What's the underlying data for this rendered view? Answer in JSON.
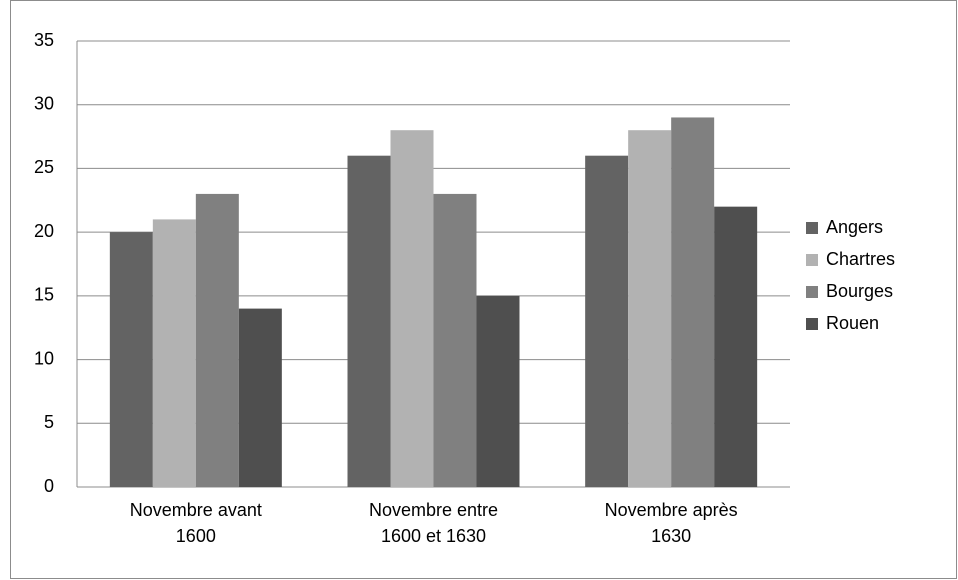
{
  "chart_data": {
    "type": "bar",
    "categories": [
      "Novembre avant\n1600",
      "Novembre entre\n1600 et 1630",
      "Novembre après\n1630"
    ],
    "series": [
      {
        "name": "Angers",
        "color": "#636363",
        "values": [
          20,
          26,
          26
        ]
      },
      {
        "name": "Chartres",
        "color": "#b2b2b2",
        "values": [
          21,
          28,
          28
        ]
      },
      {
        "name": "Bourges",
        "color": "#808080",
        "values": [
          23,
          23,
          29
        ]
      },
      {
        "name": "Rouen",
        "color": "#4f4f4f",
        "values": [
          14,
          15,
          22
        ]
      }
    ],
    "ylim": [
      0,
      35
    ],
    "yticks": [
      0,
      5,
      10,
      15,
      20,
      25,
      30,
      35
    ],
    "grid": true,
    "legend": "right"
  }
}
